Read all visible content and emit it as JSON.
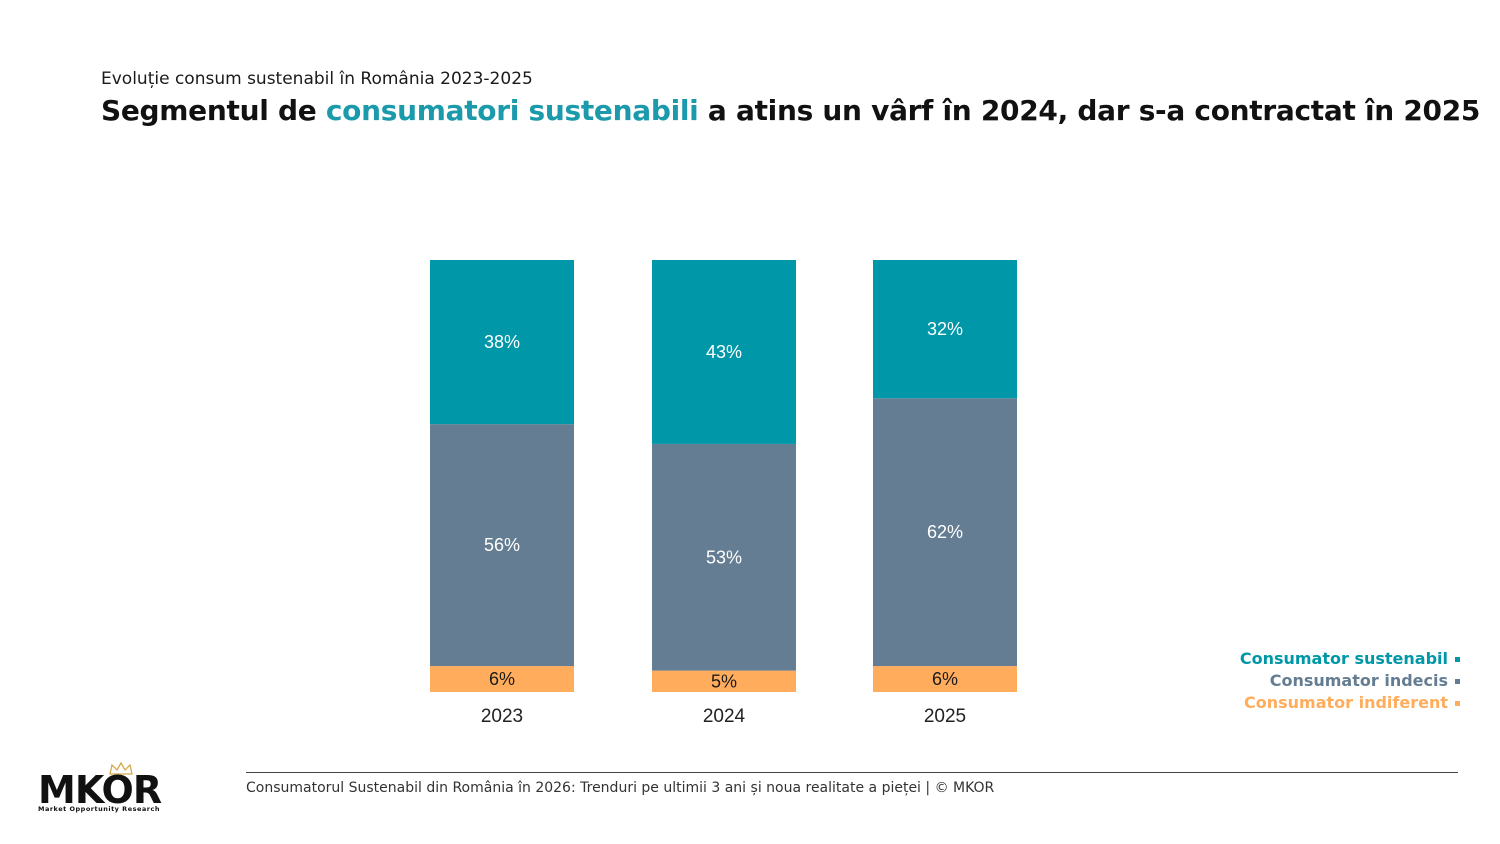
{
  "header": {
    "subtitle": "Evoluție consum sustenabil în România 2023-2025",
    "title_pre": "Segmentul de ",
    "title_highlight": "consumatori sustenabili",
    "title_post": " a atins un vârf în 2024, dar s-a contractat în 2025"
  },
  "colors": {
    "sustenabil": "#0098a8",
    "indecis": "#647d92",
    "indiferent": "#ffad5c",
    "title_highlight": "#1a9aab"
  },
  "legend": {
    "items": [
      {
        "label": "Consumator sustenabil",
        "color": "#0098a8"
      },
      {
        "label": "Consumator indecis",
        "color": "#647d92"
      },
      {
        "label": "Consumator indiferent",
        "color": "#ffad5c"
      }
    ]
  },
  "chart_data": {
    "type": "bar",
    "stacked": true,
    "categories": [
      "2023",
      "2024",
      "2025"
    ],
    "series": [
      {
        "name": "Consumator indiferent",
        "values": [
          6,
          5,
          6
        ],
        "labels": [
          "6%",
          "5%",
          "6%"
        ],
        "color": "#ffad5c"
      },
      {
        "name": "Consumator indecis",
        "values": [
          56,
          53,
          62
        ],
        "labels": [
          "56%",
          "53%",
          "62%"
        ],
        "color": "#647d92"
      },
      {
        "name": "Consumator sustenabil",
        "values": [
          38,
          43,
          32
        ],
        "labels": [
          "38%",
          "43%",
          "32%"
        ],
        "color": "#0098a8"
      }
    ],
    "legend_position": "bottom-right",
    "grid": false
  },
  "footer": {
    "text": "Consumatorul Sustenabil din România în 2026: Trenduri pe ultimii 3 ani și noua realitate a pieței | © MKOR"
  },
  "logo": {
    "word": "MKOR",
    "tagline": "Market Opportunity Research"
  }
}
